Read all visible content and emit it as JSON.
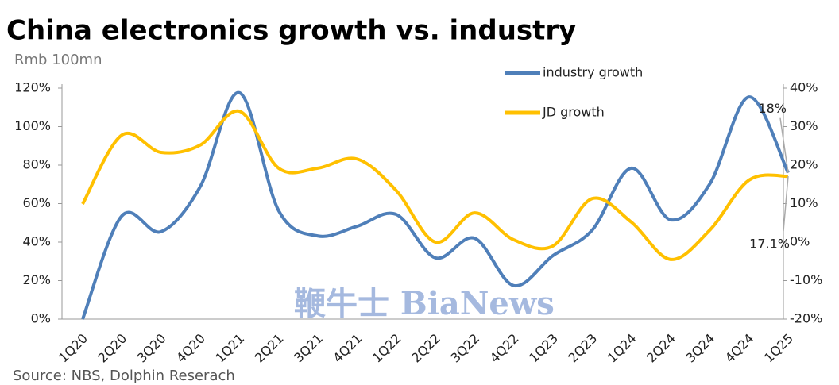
{
  "chart_data": {
    "type": "line",
    "title": "China electronics growth vs. industry",
    "subtitle": "Rmb 100mn",
    "source": "Source: NBS, Dolphin Reserach",
    "watermark": "鞭牛士 BiaNews",
    "categories": [
      "1Q20",
      "2Q20",
      "3Q20",
      "4Q20",
      "1Q21",
      "2Q21",
      "3Q21",
      "4Q21",
      "1Q22",
      "2Q22",
      "3Q22",
      "4Q22",
      "1Q23",
      "2Q23",
      "1Q24",
      "2Q24",
      "3Q24",
      "4Q24",
      "1Q25"
    ],
    "series": [
      {
        "name": "industry growth",
        "color": "#4f7fb9",
        "axis": "y2",
        "values": [
          -20,
          6.8,
          2.7,
          14.4,
          38.8,
          8.2,
          1.6,
          4.1,
          7.2,
          -4.1,
          1.0,
          -11.3,
          -3.5,
          3.1,
          19.2,
          5.8,
          15.1,
          37.7,
          18
        ]
      },
      {
        "name": "JD growth",
        "color": "#ffc000",
        "axis": "y2",
        "values": [
          9.9,
          27.8,
          23.3,
          25.2,
          34.0,
          19.2,
          19.2,
          21.6,
          13.4,
          0,
          7.6,
          0.6,
          -1.0,
          11.3,
          5.2,
          -4.5,
          3.1,
          16.1,
          17.1
        ]
      }
    ],
    "annotations": [
      {
        "series": 0,
        "label": "18%"
      },
      {
        "series": 1,
        "label": "17.1%"
      }
    ],
    "ylim": [
      0,
      120
    ],
    "yticks": [
      {
        "value": 0,
        "label": "0%"
      },
      {
        "value": 20,
        "label": "20%"
      },
      {
        "value": 40,
        "label": "40%"
      },
      {
        "value": 60,
        "label": "60%"
      },
      {
        "value": 80,
        "label": "80%"
      },
      {
        "value": 100,
        "label": "100%"
      },
      {
        "value": 120,
        "label": "120%"
      }
    ],
    "y2lim": [
      -20,
      40
    ],
    "y2ticks": [
      {
        "value": -20,
        "label": "-20%"
      },
      {
        "value": -10,
        "label": "-10%"
      },
      {
        "value": 0,
        "label": "0%"
      },
      {
        "value": 10,
        "label": "10%"
      },
      {
        "value": 20,
        "label": "20%"
      },
      {
        "value": 30,
        "label": "30%"
      },
      {
        "value": 40,
        "label": "40%"
      }
    ],
    "grid": false,
    "legend": "top-right"
  }
}
